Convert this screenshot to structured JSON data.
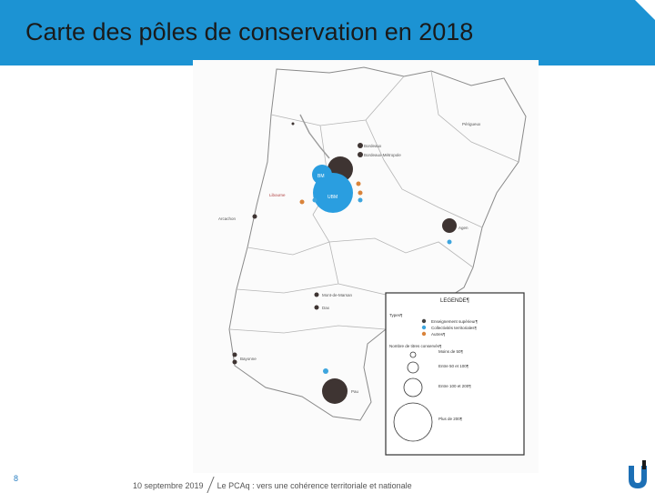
{
  "slide": {
    "title": "Carte des pôles de conservation en 2018",
    "number": "8"
  },
  "footer": {
    "date": "10 septembre 2019",
    "subject": "Le PCAq : vers une cohérence territoriale et nationale"
  },
  "map": {
    "city_labels": [
      "Bordeaux",
      "Bordeaux-Métropole",
      "Pau",
      "Agen",
      "Bayonne",
      "Dax",
      "Mont-de-Marsan",
      "Périgueux",
      "Libourne",
      "Arcachon"
    ],
    "circle_labels": {
      "bordeaux_main": "BM",
      "bordeaux_group": "UBM",
      "bordeaux_left": "AD"
    },
    "legend": {
      "title": "LEGENDE¶",
      "types_heading": "Types¶",
      "types": [
        {
          "label": "Enseignement supérieur¶",
          "color": "#444444"
        },
        {
          "label": "Collectivités territoriales¶",
          "color": "#3da5de"
        },
        {
          "label": "Autres¶",
          "color": "#d9833a"
        }
      ],
      "size_heading": "Nombre de titres conservés¶",
      "sizes": [
        "Moins de 50¶",
        "Entre 50 et 100¶",
        "Entre 100 et 200¶",
        "Plus de 200¶"
      ]
    }
  }
}
